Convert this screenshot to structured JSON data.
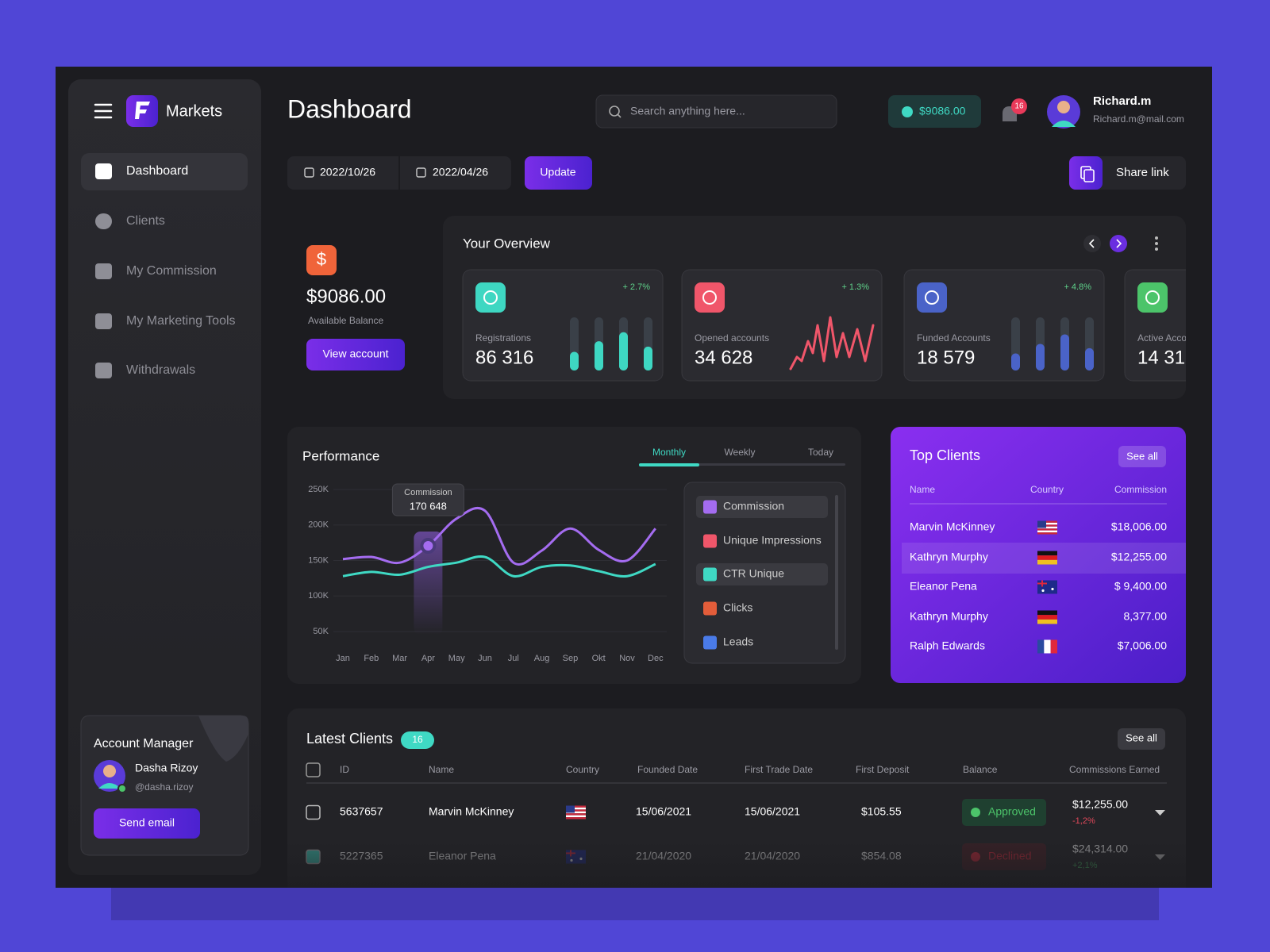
{
  "sidebar": {
    "brand": "Markets",
    "menu": [
      "Dashboard",
      "Clients",
      "My Commission",
      "My Marketing Tools",
      "Withdrawals"
    ],
    "manager": {
      "title": "Account Manager",
      "name": "Dasha Rizoy",
      "handle": "@dasha.rizoy",
      "button": "Send email"
    }
  },
  "header": {
    "title": "Dashboard",
    "search": "Search anything here...",
    "balance": "$9086.00",
    "notifications": "16",
    "user": {
      "name": "Richard.m",
      "email": "Richard.m@mail.com"
    }
  },
  "toolbar": {
    "date_from": "2022/10/26",
    "date_to": "2022/04/26",
    "update": "Update",
    "share": "Share link"
  },
  "balance_card": {
    "amount": "$9086.00",
    "label": "Available Balance",
    "button": "View account"
  },
  "overview": {
    "title": "Your Overview",
    "cards": [
      {
        "label": "Registrations",
        "value": "86 316",
        "change": "+ 2.7%",
        "color": "#3ed7c2",
        "bars": [
          35,
          55,
          72,
          45
        ]
      },
      {
        "label": "Opened accounts",
        "value": "34 628",
        "change": "+ 1.3%",
        "color": "#f0566a"
      },
      {
        "label": "Funded Accounts",
        "value": "18 579",
        "change": "+ 4.8%",
        "color": "#4a63c8",
        "bars": [
          32,
          50,
          68,
          42
        ]
      },
      {
        "label": "Active Acco",
        "value": "14 31",
        "color": "#4cc46a"
      }
    ]
  },
  "chart_data": {
    "type": "line",
    "title": "Performance",
    "tabs": [
      "Monthly",
      "Weekly",
      "Today"
    ],
    "categories": [
      "Jan",
      "Feb",
      "Mar",
      "Apr",
      "May",
      "Jun",
      "Jul",
      "Aug",
      "Sep",
      "Okt",
      "Nov",
      "Dec"
    ],
    "series": [
      {
        "name": "Commission",
        "color": "#a46cf0",
        "values": [
          152000,
          155000,
          147000,
          170648,
          209000,
          220000,
          147000,
          164000,
          195000,
          165000,
          150000,
          195000
        ],
        "value_labels": [
          null,
          null,
          null,
          "170 648",
          null,
          null,
          null,
          null,
          null,
          null,
          null,
          null
        ]
      },
      {
        "name": "Unique Impressions",
        "color": "#f0566a"
      },
      {
        "name": "CTR Unique",
        "color": "#3fd9c4",
        "values": [
          128000,
          134000,
          130000,
          141000,
          147000,
          155000,
          128000,
          141000,
          143000,
          135000,
          128000,
          145000
        ]
      },
      {
        "name": "Clicks",
        "color": "#e35d3a"
      },
      {
        "name": "Leads",
        "color": "#4a7be8"
      }
    ],
    "ylim": [
      30000,
      260000
    ],
    "yticks": [
      {
        "value": 250000,
        "label": "250K"
      },
      {
        "value": 200000,
        "label": "200K"
      },
      {
        "value": 150000,
        "label": "150K"
      },
      {
        "value": 100000,
        "label": "100K"
      },
      {
        "value": 50000,
        "label": "50K"
      }
    ],
    "grid": true
  },
  "top_clients": {
    "title": "Top Clients",
    "see_all": "See all",
    "columns": [
      "Name",
      "Country",
      "Commission"
    ],
    "rows": [
      {
        "name": "Marvin McKinney",
        "commission": "$18,006.00"
      },
      {
        "name": "Kathryn Murphy",
        "commission": "$12,255.00"
      },
      {
        "name": "Eleanor Pena",
        "commission": "$ 9,400.00"
      },
      {
        "name": "Kathryn Murphy",
        "commission": "8,377.00"
      },
      {
        "name": "Ralph Edwards",
        "commission": "$7,006.00"
      }
    ]
  },
  "latest_clients": {
    "title": "Latest Clients",
    "count": "16",
    "see_all": "See all",
    "columns": [
      "ID",
      "Name",
      "Country",
      "Founded Date",
      "First Trade Date",
      "First Deposit",
      "Balance",
      "Commissions Earned"
    ],
    "rows": [
      {
        "id": "5637657",
        "name": "Marvin McKinney",
        "founded": "15/06/2021",
        "first_trade": "15/06/2021",
        "deposit": "$105.55",
        "balance": "Approved",
        "commission": "$12,255.00",
        "change": "-1,2%"
      },
      {
        "id": "5227365",
        "name": "Eleanor Pena",
        "founded": "21/04/2020",
        "first_trade": "21/04/2020",
        "deposit": "$854.08",
        "balance": "Declined",
        "commission": "$24,314.00",
        "change": "+2,1%"
      }
    ]
  }
}
